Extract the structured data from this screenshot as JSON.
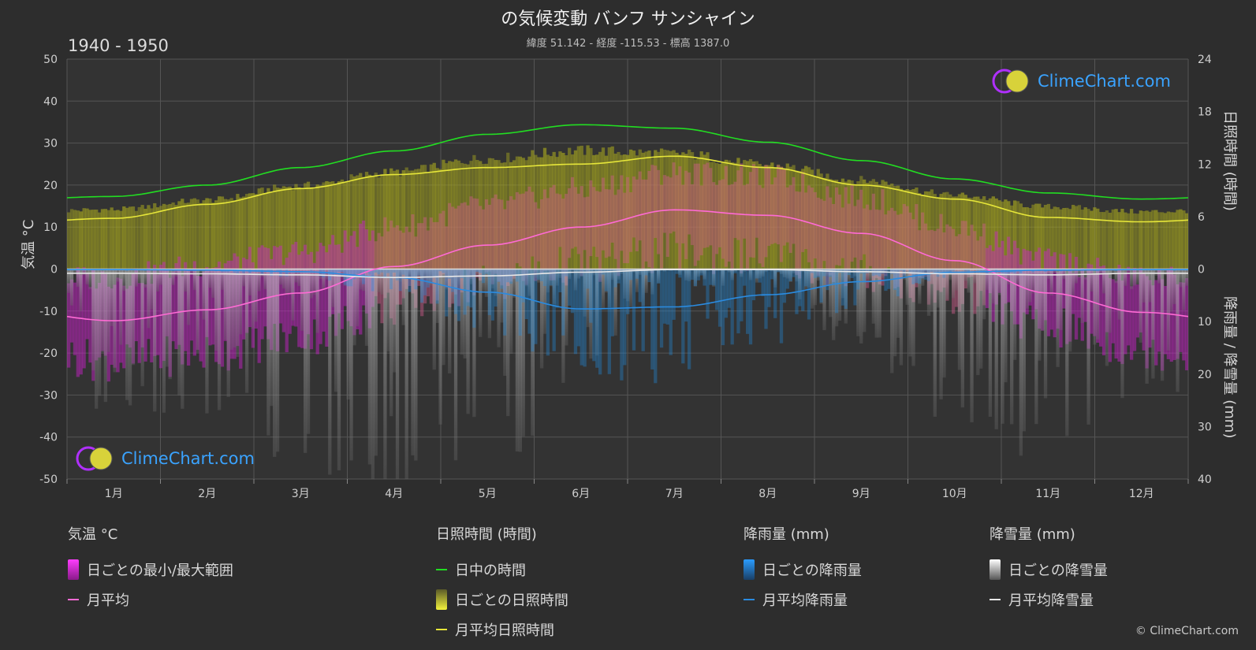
{
  "header": {
    "title": "の気候変動 バンフ サンシャイン",
    "subtitle": "緯度 51.142 - 経度 -115.53 - 標高 1387.0",
    "period": "1940 - 1950"
  },
  "axes": {
    "left_title": "気温 °C",
    "right_top_title": "日照時間 (時間)",
    "right_bottom_title": "降雨量 / 降雪量 (mm)"
  },
  "logo_text": "ClimeChart.com",
  "copyright": "© ClimeChart.com",
  "legend": {
    "temperature": {
      "head": "気温 °C",
      "range": "日ごとの最小/最大範囲",
      "mean": "月平均"
    },
    "sunshine": {
      "head": "日照時間 (時間)",
      "daylight": "日中の時間",
      "daily": "日ごとの日照時間",
      "mean": "月平均日照時間"
    },
    "rain": {
      "head": "降雨量 (mm)",
      "daily": "日ごとの降雨量",
      "mean": "月平均降雨量"
    },
    "snow": {
      "head": "降雪量 (mm)",
      "daily": "日ごとの降雪量",
      "mean": "月平均降雪量"
    }
  },
  "colors": {
    "background": "#2d2d2d",
    "temp_range": "#d020d0",
    "temp_mean": "#ff6ad5",
    "daylight": "#22dd22",
    "sunshine_fill": "#a8a81e",
    "sunshine_mean": "#e6e63a",
    "rain": "#1f8fe6",
    "rain_mean": "#2a8be0",
    "snow": "#bfbfbf",
    "snow_mean": "#e8e8e8"
  },
  "chart_data": {
    "type": "area",
    "categories": [
      "1月",
      "2月",
      "3月",
      "4月",
      "5月",
      "6月",
      "7月",
      "8月",
      "9月",
      "10月",
      "11月",
      "12月"
    ],
    "temperature_axis": {
      "ylim": [
        -50,
        50
      ],
      "ticks": [
        50,
        40,
        30,
        20,
        10,
        0,
        -10,
        -20,
        -30,
        -40,
        -50
      ]
    },
    "sunshine_axis": {
      "ylim": [
        0,
        24
      ],
      "ticks": [
        24,
        18,
        12,
        6,
        0
      ]
    },
    "precip_axis": {
      "ylim": [
        0,
        40
      ],
      "ticks": [
        0,
        10,
        20,
        30,
        40
      ],
      "inverted": true
    },
    "series": [
      {
        "name": "日中の時間",
        "axis": "sunshine",
        "values": [
          8.3,
          9.6,
          11.6,
          13.5,
          15.4,
          16.5,
          16.1,
          14.5,
          12.4,
          10.3,
          8.7,
          8.0
        ]
      },
      {
        "name": "月平均日照時間",
        "axis": "sunshine",
        "values": [
          5.8,
          7.4,
          9.2,
          10.8,
          11.6,
          12.0,
          12.9,
          11.6,
          9.6,
          8.0,
          5.9,
          5.4
        ]
      },
      {
        "name": "月平均",
        "axis": "temperature",
        "values": [
          -12.3,
          -9.7,
          -5.7,
          0.6,
          5.7,
          10.0,
          14.1,
          12.8,
          8.5,
          2.0,
          -5.7,
          -10.3
        ]
      },
      {
        "name": "月平均降雨量",
        "axis": "precip",
        "values": [
          0.1,
          0.2,
          0.5,
          1.6,
          4.4,
          7.6,
          7.2,
          4.9,
          2.4,
          0.6,
          0.2,
          0.1
        ]
      },
      {
        "name": "月平均降雪量",
        "axis": "precip",
        "values": [
          0.8,
          0.9,
          1.1,
          1.6,
          1.3,
          0.6,
          0.1,
          0.1,
          0.5,
          0.9,
          1.1,
          0.8
        ]
      }
    ],
    "daily_temperature_range": {
      "max": [
        -2,
        1,
        4,
        10,
        15,
        19,
        23,
        22,
        17,
        10,
        2,
        -2
      ],
      "min": [
        -22,
        -20,
        -16,
        -9,
        -3,
        1,
        4,
        3,
        -1,
        -6,
        -14,
        -19
      ]
    },
    "grid": true
  }
}
